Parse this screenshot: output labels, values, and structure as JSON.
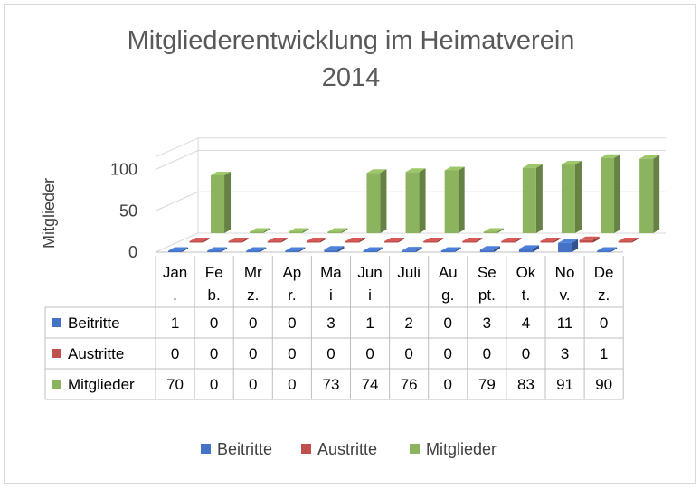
{
  "chart_data": {
    "type": "bar",
    "title": [
      "Mitgliederentwicklung im Heimatverein",
      "2014"
    ],
    "ylabel": "Mitglieder",
    "y_ticks": [
      "0",
      "50",
      "100"
    ],
    "ylim": [
      0,
      100
    ],
    "categories": [
      [
        "Jan",
        "."
      ],
      [
        "Fe",
        "b."
      ],
      [
        "Mr",
        "z."
      ],
      [
        "Ap",
        "r."
      ],
      [
        "Ma",
        "i"
      ],
      [
        "Jun",
        "i"
      ],
      [
        "Juli",
        ""
      ],
      [
        "Au",
        "g."
      ],
      [
        "Se",
        "pt."
      ],
      [
        "Ok",
        "t."
      ],
      [
        "No",
        "v."
      ],
      [
        "De",
        "z."
      ]
    ],
    "series": [
      {
        "name": "Beitritte",
        "color": "#4472C4",
        "values": [
          1,
          0,
          0,
          0,
          3,
          1,
          2,
          0,
          3,
          4,
          11,
          0
        ]
      },
      {
        "name": "Austritte",
        "color": "#C0504D",
        "values": [
          0,
          0,
          0,
          0,
          0,
          0,
          0,
          0,
          0,
          0,
          3,
          1
        ]
      },
      {
        "name": "Mitglieder",
        "color": "#8CB35E",
        "values": [
          70,
          0,
          0,
          0,
          73,
          74,
          76,
          0,
          79,
          83,
          91,
          90
        ]
      }
    ],
    "grid": true,
    "legend": "bottom",
    "data_table": true
  }
}
